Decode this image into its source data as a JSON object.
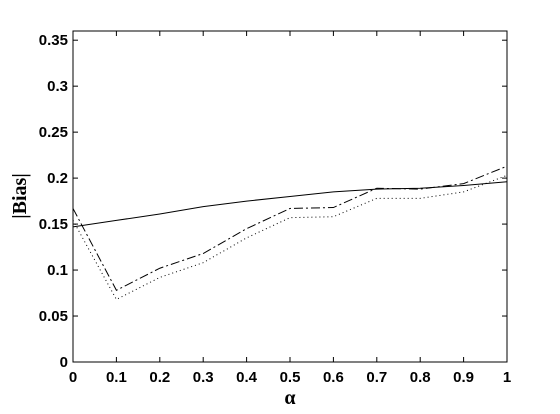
{
  "chart_data": {
    "type": "line",
    "x_label": "α",
    "y_label": "|Bias|",
    "x": [
      0,
      0.1,
      0.2,
      0.3,
      0.4,
      0.5,
      0.6,
      0.7,
      0.8,
      0.9,
      1
    ],
    "series": [
      {
        "color": "#000000",
        "style": "solid",
        "values": [
          0.147,
          0.154,
          0.161,
          0.169,
          0.175,
          0.18,
          0.185,
          0.188,
          0.189,
          0.192,
          0.196
        ]
      },
      {
        "color": "#000000",
        "style": "dashdot",
        "values": [
          0.167,
          0.078,
          0.102,
          0.118,
          0.145,
          0.167,
          0.168,
          0.189,
          0.188,
          0.194,
          0.213
        ]
      },
      {
        "color": "#000000",
        "style": "dotted",
        "values": [
          0.154,
          0.068,
          0.092,
          0.108,
          0.135,
          0.157,
          0.158,
          0.178,
          0.178,
          0.185,
          0.203
        ]
      }
    ],
    "xlim": [
      0,
      1
    ],
    "xticks": [
      0,
      0.1,
      0.2,
      0.3,
      0.4,
      0.5,
      0.6,
      0.7,
      0.8,
      0.9,
      1
    ],
    "ylim": [
      0,
      0.36
    ],
    "yticks": [
      0,
      0.05,
      0.1,
      0.15,
      0.2,
      0.25,
      0.3,
      0.35
    ],
    "grid": false
  }
}
